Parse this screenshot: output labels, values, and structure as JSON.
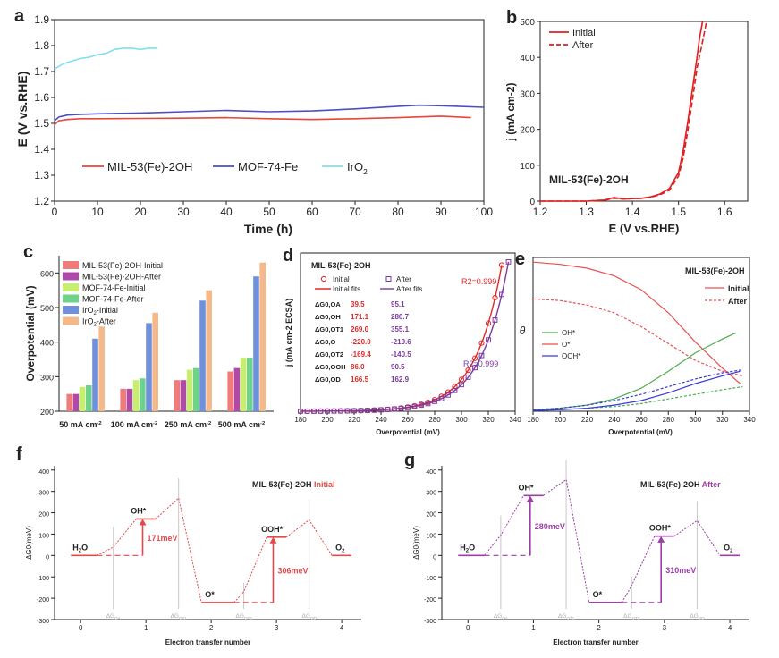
{
  "chart_data": [
    {
      "panel": "a",
      "type": "line",
      "xlabel": "Time (h)",
      "ylabel": "E (V vs.RHE)",
      "xlim": [
        0,
        100
      ],
      "ylim": [
        1.2,
        1.9
      ],
      "xticks": [
        0,
        10,
        20,
        30,
        40,
        50,
        60,
        70,
        80,
        90,
        100
      ],
      "yticks": [
        1.2,
        1.3,
        1.4,
        1.5,
        1.6,
        1.7,
        1.8,
        1.9
      ],
      "legend_labels": [
        "MIL-53(Fe)-2OH",
        "MOF-74-Fe",
        "IrO2"
      ],
      "series": [
        {
          "name": "MIL-53(Fe)-2OH",
          "color": "#e8453c",
          "x": [
            0,
            1,
            3,
            6,
            10,
            20,
            30,
            40,
            50,
            60,
            70,
            80,
            90,
            97
          ],
          "y": [
            1.495,
            1.51,
            1.515,
            1.518,
            1.518,
            1.519,
            1.52,
            1.522,
            1.518,
            1.515,
            1.518,
            1.522,
            1.528,
            1.522
          ]
        },
        {
          "name": "MOF-74-Fe",
          "color": "#4a4fc6",
          "x": [
            0,
            1,
            3,
            6,
            10,
            20,
            30,
            40,
            50,
            60,
            70,
            80,
            85,
            90,
            100
          ],
          "y": [
            1.51,
            1.525,
            1.532,
            1.535,
            1.537,
            1.54,
            1.545,
            1.55,
            1.545,
            1.548,
            1.556,
            1.566,
            1.57,
            1.568,
            1.562
          ]
        },
        {
          "name": "IrO2",
          "color": "#7fe0ee",
          "x": [
            0,
            2,
            4,
            6,
            8,
            10,
            12,
            14,
            16,
            18,
            20,
            22,
            24
          ],
          "y": [
            1.71,
            1.73,
            1.74,
            1.75,
            1.755,
            1.765,
            1.77,
            1.785,
            1.79,
            1.79,
            1.785,
            1.79,
            1.79
          ]
        }
      ]
    },
    {
      "panel": "b",
      "type": "line",
      "xlabel": "E (V vs.RHE)",
      "ylabel": "j (mA cm-2)",
      "xlim": [
        1.2,
        1.65
      ],
      "ylim": [
        0,
        500
      ],
      "xticks": [
        1.2,
        1.3,
        1.4,
        1.5,
        1.6
      ],
      "yticks": [
        0,
        100,
        200,
        300,
        400,
        500
      ],
      "annotation": "MIL-53(Fe)-2OH",
      "legend_labels": [
        "Initial",
        "After"
      ],
      "series": [
        {
          "name": "Initial",
          "color": "#e02020",
          "dash": false,
          "x": [
            1.2,
            1.3,
            1.34,
            1.36,
            1.38,
            1.4,
            1.42,
            1.44,
            1.46,
            1.48,
            1.5,
            1.51,
            1.52,
            1.53,
            1.54,
            1.545,
            1.552
          ],
          "y": [
            0,
            0,
            3,
            10,
            6,
            7,
            8,
            12,
            20,
            35,
            80,
            140,
            220,
            310,
            400,
            450,
            500
          ]
        },
        {
          "name": "After",
          "color": "#e02020",
          "dash": true,
          "x": [
            1.2,
            1.3,
            1.34,
            1.36,
            1.38,
            1.4,
            1.42,
            1.44,
            1.46,
            1.48,
            1.5,
            1.51,
            1.52,
            1.53,
            1.54,
            1.55,
            1.56
          ],
          "y": [
            0,
            0,
            3,
            8,
            6,
            7,
            8,
            11,
            18,
            30,
            70,
            120,
            195,
            280,
            370,
            430,
            495
          ]
        }
      ]
    },
    {
      "panel": "c",
      "type": "bar",
      "ylabel": "Overpotential (mV)",
      "ylim": [
        200,
        650
      ],
      "yticks": [
        200,
        300,
        400,
        500,
        600
      ],
      "categories": [
        "50 mA cm-2",
        "100 mA cm-2",
        "250 mA cm-2",
        "500 mA cm-2"
      ],
      "legend_labels": [
        "MIL-53(Fe)-2OH-Initial",
        "MIL-53(Fe)-2OH-After",
        "MOF-74-Fe-Initial",
        "MOF-74-Fe-After",
        "IrO2-Initial",
        "IrO2-After"
      ],
      "series": [
        {
          "name": "MIL-53(Fe)-2OH-Initial",
          "color": "#ef7b7b",
          "values": [
            250,
            265,
            290,
            315
          ]
        },
        {
          "name": "MIL-53(Fe)-2OH-After",
          "color": "#b04aa8",
          "values": [
            250,
            265,
            290,
            325
          ]
        },
        {
          "name": "MOF-74-Fe-Initial",
          "color": "#c8ee6e",
          "values": [
            270,
            290,
            320,
            355
          ]
        },
        {
          "name": "MOF-74-Fe-After",
          "color": "#6fd28a",
          "values": [
            275,
            295,
            325,
            355
          ]
        },
        {
          "name": "IrO2-Initial",
          "color": "#6f90dd",
          "values": [
            410,
            455,
            520,
            590
          ]
        },
        {
          "name": "IrO2-After",
          "color": "#f4b98a",
          "values": [
            445,
            485,
            550,
            630
          ]
        }
      ]
    },
    {
      "panel": "d",
      "type": "scatter",
      "title": "MIL-53(Fe)-2OH",
      "xlabel": "Overpotential (mV)",
      "ylabel": "j (mA cm-2 ECSA)",
      "xlim": [
        180,
        340
      ],
      "ylim": [
        0,
        7.5
      ],
      "xticks": [
        180,
        200,
        220,
        240,
        260,
        280,
        300,
        320,
        340
      ],
      "legend_labels": [
        "Initial",
        "After",
        "Initial fits",
        "After fits"
      ],
      "r2_labels": [
        "R2=0.999",
        "R2=0.999"
      ],
      "table": {
        "rows": [
          "ΔG0,OA",
          "ΔG0,OH",
          "ΔG0,OT1",
          "ΔG0,O",
          "ΔG0,OT2",
          "ΔG0,OOH",
          "ΔG0,OD"
        ],
        "initial": [
          "39.5",
          "171.1",
          "269.0",
          "-220.0",
          "-169.4",
          "86.0",
          "166.5"
        ],
        "after": [
          "95.1",
          "280.7",
          "355.1",
          "-219.6",
          "-140.5",
          "90.5",
          "162.9"
        ]
      },
      "series": [
        {
          "name": "Initial",
          "color": "#e02828",
          "x0": 180,
          "x1": 330,
          "c": 0.0034,
          "k": 0.0508,
          "step": 5
        },
        {
          "name": "After",
          "color": "#7a3aa0",
          "x0": 180,
          "x1": 335,
          "c": 0.0034,
          "k": 0.0493,
          "step": 5
        }
      ]
    },
    {
      "panel": "e",
      "type": "line",
      "title": "MIL-53(Fe)-2OH",
      "xlabel": "Overpotential (mV)",
      "ylabel": "θ",
      "xlim": [
        180,
        340
      ],
      "ylim": [
        0,
        1
      ],
      "xticks": [
        180,
        200,
        220,
        240,
        260,
        280,
        300,
        320,
        340
      ],
      "legend_labels": [
        "Initial",
        "After",
        "OH*",
        "O*",
        "OOH*"
      ],
      "series": [
        {
          "name": "O* initial",
          "color": "#e85050",
          "dash": false,
          "x": [
            180,
            200,
            220,
            240,
            260,
            280,
            300,
            320,
            333
          ],
          "y": [
            0.97,
            0.955,
            0.93,
            0.88,
            0.79,
            0.64,
            0.45,
            0.28,
            0.18
          ]
        },
        {
          "name": "O* after",
          "color": "#e85050",
          "dash": true,
          "x": [
            180,
            200,
            220,
            240,
            260,
            280,
            300,
            320,
            335
          ],
          "y": [
            0.73,
            0.72,
            0.69,
            0.64,
            0.55,
            0.44,
            0.33,
            0.26,
            0.23
          ]
        },
        {
          "name": "OH* initial",
          "color": "#4cae4c",
          "dash": false,
          "x": [
            180,
            200,
            220,
            240,
            260,
            280,
            300,
            320,
            330
          ],
          "y": [
            0.01,
            0.02,
            0.04,
            0.08,
            0.15,
            0.26,
            0.38,
            0.47,
            0.51
          ]
        },
        {
          "name": "OH* after",
          "color": "#4cae4c",
          "dash": true,
          "x": [
            180,
            200,
            220,
            240,
            260,
            280,
            300,
            320,
            335
          ],
          "y": [
            0.005,
            0.01,
            0.02,
            0.03,
            0.05,
            0.08,
            0.11,
            0.14,
            0.16
          ]
        },
        {
          "name": "OOH* initial",
          "color": "#3a3ad8",
          "dash": false,
          "x": [
            180,
            200,
            220,
            240,
            260,
            280,
            300,
            320,
            333
          ],
          "y": [
            0.005,
            0.01,
            0.02,
            0.04,
            0.07,
            0.12,
            0.18,
            0.23,
            0.26
          ]
        },
        {
          "name": "OOH* after",
          "color": "#3a3ad8",
          "dash": true,
          "x": [
            180,
            200,
            220,
            240,
            260,
            280,
            300,
            320,
            335
          ],
          "y": [
            0.01,
            0.02,
            0.04,
            0.07,
            0.11,
            0.16,
            0.21,
            0.25,
            0.27
          ]
        }
      ]
    },
    {
      "panel": "f",
      "type": "line",
      "title": "MIL-53(Fe)-2OH",
      "title_tag": "Initial",
      "xlabel": "Electron transfer number",
      "ylabel": "ΔG0(meV)",
      "xlim": [
        -0.4,
        4.3
      ],
      "ylim": [
        -300,
        420
      ],
      "xticks": [
        0,
        1,
        2,
        3,
        4
      ],
      "yticks": [
        -300,
        -200,
        -100,
        0,
        100,
        200,
        300,
        400
      ],
      "color": "#e04a4a",
      "levels": [
        {
          "x0": -0.15,
          "x1": 0.25,
          "y": 0,
          "label": "H2O"
        },
        {
          "x0": 0.85,
          "x1": 1.15,
          "y": 171,
          "label": "OH*"
        },
        {
          "x0": 1.85,
          "x1": 2.35,
          "y": -220,
          "label": "O*"
        },
        {
          "x0": 2.85,
          "x1": 3.15,
          "y": 86,
          "label": "OOH*"
        },
        {
          "x0": 3.85,
          "x1": 4.15,
          "y": 0,
          "label": "O2"
        }
      ],
      "ts": [
        {
          "x": 0.5,
          "y": 39.5,
          "label": "ΔG0,OA"
        },
        {
          "x": 1.5,
          "y": 269,
          "label": "ΔG0,OT1"
        },
        {
          "x": 2.5,
          "y": -169.4,
          "label": "ΔG0,OT2"
        },
        {
          "x": 3.5,
          "y": 166.5,
          "label": "ΔG0,OD"
        }
      ],
      "arrows": [
        {
          "x": 0.95,
          "from": 0,
          "to": 171,
          "label": "171meV"
        },
        {
          "x": 2.95,
          "from": -220,
          "to": 86,
          "label": "306meV"
        }
      ]
    },
    {
      "panel": "g",
      "type": "line",
      "title": "MIL-53(Fe)-2OH",
      "title_tag": "After",
      "xlabel": "Electron transfer number",
      "ylabel": "ΔG0(meV)",
      "xlim": [
        -0.4,
        4.3
      ],
      "ylim": [
        -300,
        420
      ],
      "xticks": [
        0,
        1,
        2,
        3,
        4
      ],
      "yticks": [
        -300,
        -200,
        -100,
        0,
        100,
        200,
        300,
        400
      ],
      "color": "#9b3fa6",
      "levels": [
        {
          "x0": -0.15,
          "x1": 0.25,
          "y": 0,
          "label": "H2O"
        },
        {
          "x0": 0.85,
          "x1": 1.15,
          "y": 280.7,
          "label": "OH*"
        },
        {
          "x0": 1.85,
          "x1": 2.35,
          "y": -219.6,
          "label": "O*"
        },
        {
          "x0": 2.85,
          "x1": 3.15,
          "y": 90.5,
          "label": "OOH*"
        },
        {
          "x0": 3.85,
          "x1": 4.15,
          "y": 0,
          "label": "O2"
        }
      ],
      "ts": [
        {
          "x": 0.5,
          "y": 95.1,
          "label": "ΔG0,OA"
        },
        {
          "x": 1.5,
          "y": 355.1,
          "label": "ΔG0,OT1"
        },
        {
          "x": 2.5,
          "y": -140.5,
          "label": "ΔG0,OT2"
        },
        {
          "x": 3.5,
          "y": 162.9,
          "label": "ΔG0,OD"
        }
      ],
      "arrows": [
        {
          "x": 0.95,
          "from": 0,
          "to": 280,
          "label": "280meV"
        },
        {
          "x": 2.95,
          "from": -220,
          "to": 90,
          "label": "310meV"
        }
      ]
    }
  ]
}
